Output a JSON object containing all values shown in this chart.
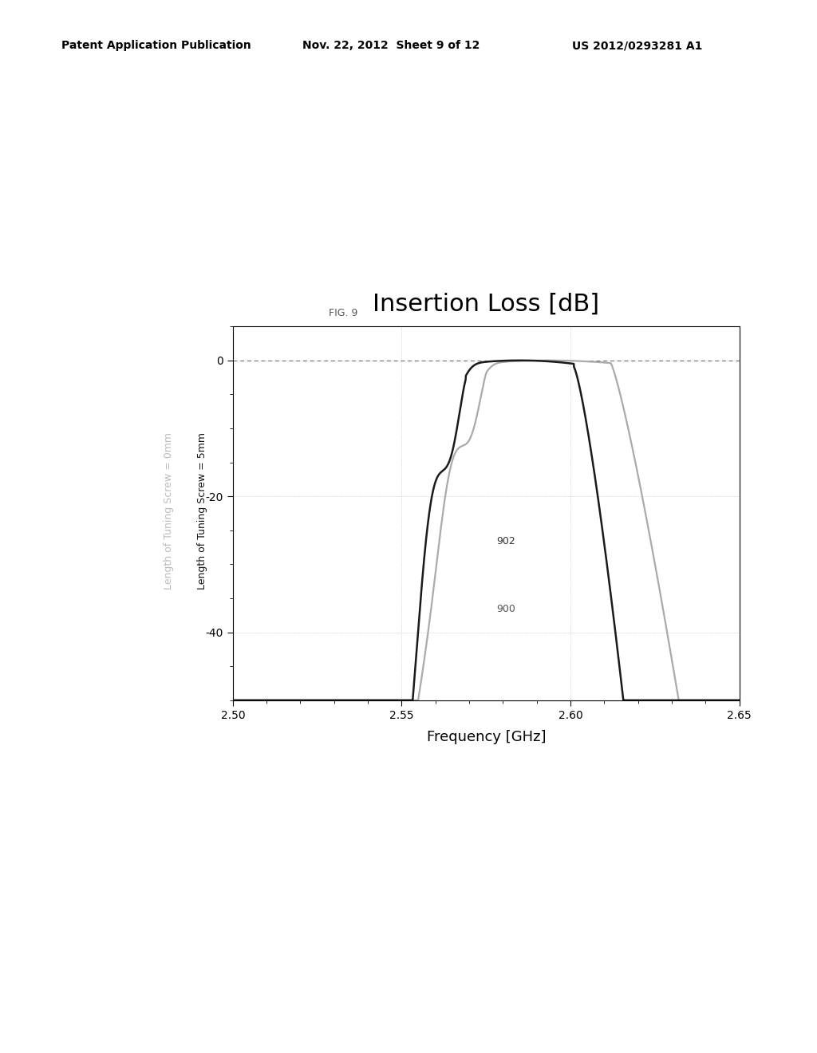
{
  "title": "Insertion Loss [dB]",
  "fig_label": "FIG. 9",
  "xlabel": "Frequency [GHz]",
  "ylabel_5mm": "Length of Tuning Screw = 5mm",
  "ylabel_0mm": "Length of Tuning Screw = 0mm",
  "xlim": [
    2.5,
    2.65
  ],
  "ylim": [
    -50,
    5
  ],
  "xticks": [
    2.5,
    2.55,
    2.6,
    2.65
  ],
  "yticks": [
    0,
    -20,
    -40
  ],
  "background_color": "#ffffff",
  "header_left": "Patent Application Publication",
  "header_mid": "Nov. 22, 2012  Sheet 9 of 12",
  "header_right": "US 2012/0293281 A1",
  "curve_gray_color": "#aaaaaa",
  "curve_black_color": "#1a1a1a",
  "annotation_900": "900",
  "annotation_902": "902",
  "title_fontsize": 22,
  "xlabel_fontsize": 13,
  "tick_fontsize": 10,
  "header_fontsize": 10
}
